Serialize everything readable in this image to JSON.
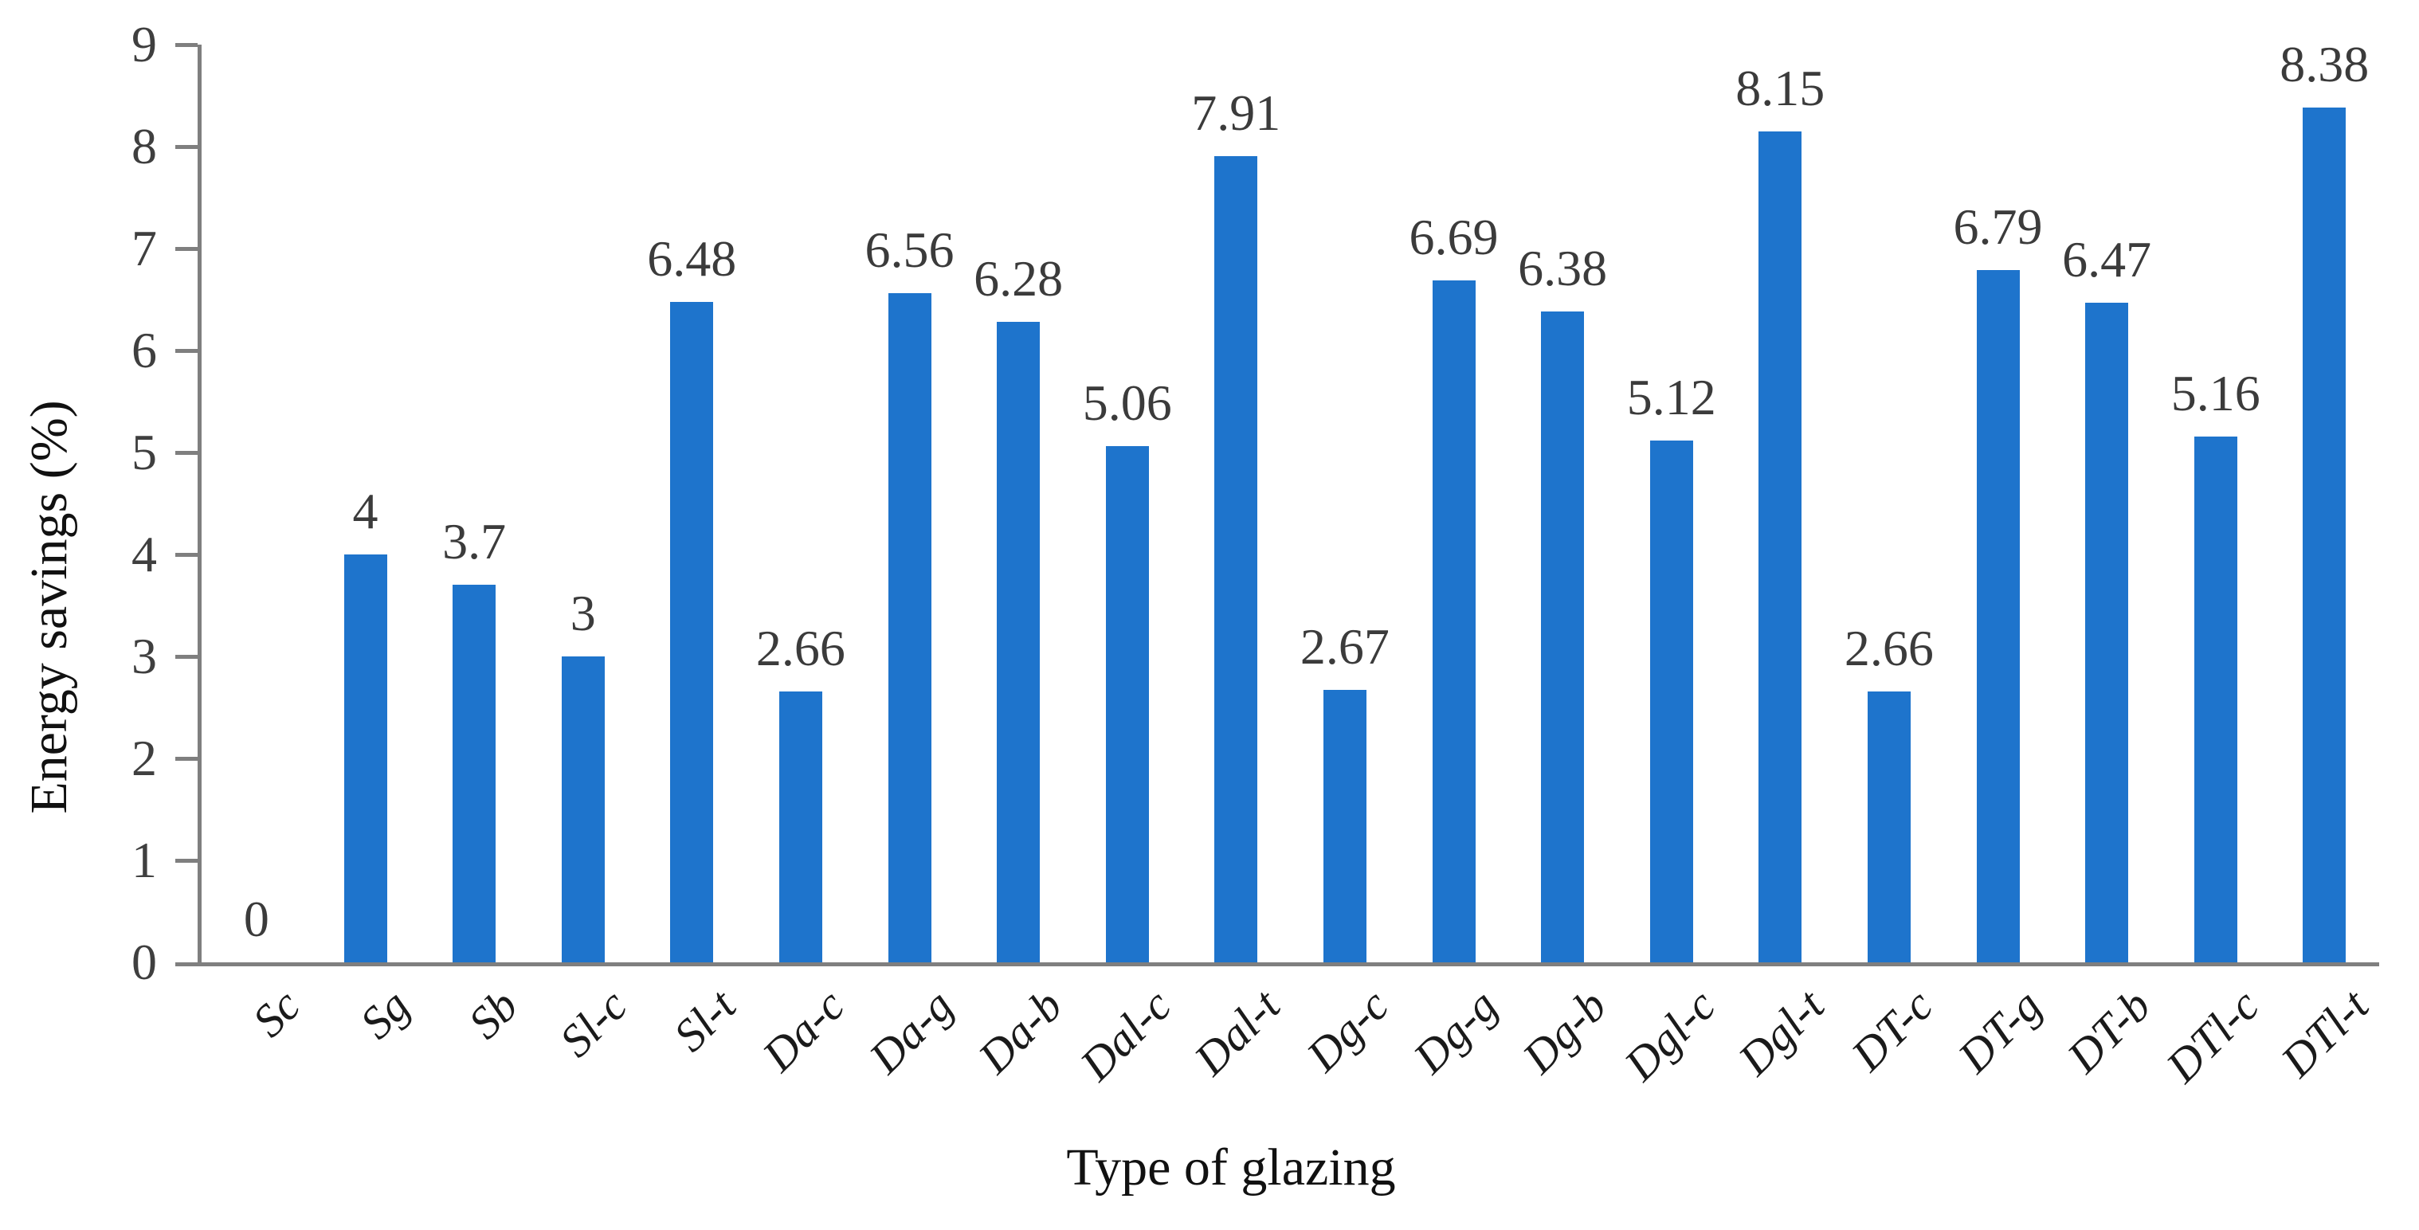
{
  "chart_data": {
    "type": "bar",
    "title": "",
    "xlabel": "Type of glazing",
    "ylabel": "Energy savings (%)",
    "categories": [
      "Sc",
      "Sg",
      "Sb",
      "Sl-c",
      "Sl-t",
      "Da-c",
      "Da-g",
      "Da-b",
      "Dal-c",
      "Dal-t",
      "Dg-c",
      "Dg-g",
      "Dg-b",
      "Dgl-c",
      "Dgl-t",
      "DT-c",
      "DT-g",
      "DT-b",
      "DTl-c",
      "DTl-t"
    ],
    "values": [
      0,
      4,
      3.7,
      3,
      6.48,
      2.66,
      6.56,
      6.28,
      5.06,
      7.91,
      2.67,
      6.69,
      6.38,
      5.12,
      8.15,
      2.66,
      6.79,
      6.47,
      5.16,
      8.38
    ],
    "data_labels": [
      "0",
      "4",
      "3.7",
      "3",
      "6.48",
      "2.66",
      "6.56",
      "6.28",
      "5.06",
      "7.91",
      "2.67",
      "6.69",
      "6.38",
      "5.12",
      "8.15",
      "2.66",
      "6.79",
      "6.47",
      "5.16",
      "8.38"
    ],
    "yticks": [
      0,
      1,
      2,
      3,
      4,
      5,
      6,
      7,
      8,
      9
    ],
    "ylim": [
      0,
      9
    ],
    "grid": false,
    "legend_position": "none",
    "bar_color": "#1E74CC",
    "axis_color": "#7F7F7F",
    "tick_label_color": "#3f3f3f",
    "data_label_color": "#3b3b3b",
    "category_label_color": "#1a1a1a",
    "title_color": "#111111"
  }
}
